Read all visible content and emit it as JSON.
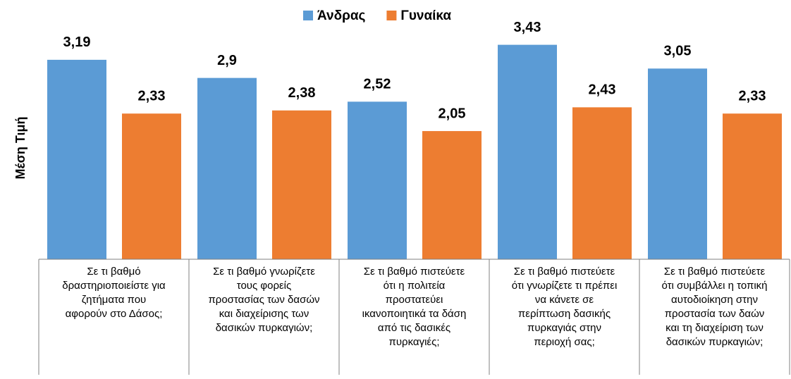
{
  "chart_data": {
    "type": "bar",
    "y_label": "Μέση Τιμή",
    "categories": [
      "Σε τι βαθμό\nδραστηριοποιείστε για\nζητήματα που\nαφορούν στο Δάσος;",
      "Σε τι βαθμό  γνωρίζετε\nτους φορείς\nπροστασίας των δασών\nκαι διαχείρισης των\nδασικών πυρκαγιών;",
      "Σε τι βαθμό  πιστεύετε\nότι η πολιτεία\nπροστατεύει\nικανοποιητικά τα δάση\nαπό τις δασικές\nπυρκαγιές;",
      "Σε τι βαθμό  πιστεύετε\nότι γνωρίζετε  τι πρέπει\nνα κάνετε σε\nπερίπτωση δασικής\nπυρκαγιάς στην\nπεριοχή σας;",
      "Σε τι βαθμό  πιστεύετε\nότι συμβάλλει  η τοπική\nαυτοδιοίκηση  στην\nπροστασία των δαών\nκαι τη διαχείριση των\nδασικών πυρκαγιών;"
    ],
    "series": [
      {
        "name": "Άνδρας",
        "color": "#5b9bd5",
        "values": [
          3.19,
          2.9,
          2.52,
          3.43,
          3.05
        ],
        "value_labels": [
          "3,19",
          "2,9",
          "2,52",
          "3,43",
          "3,05"
        ]
      },
      {
        "name": "Γυναίκα",
        "color": "#ed7d31",
        "values": [
          2.33,
          2.38,
          2.05,
          2.43,
          2.33
        ],
        "value_labels": [
          "2,33",
          "2,38",
          "2,05",
          "2,43",
          "2,33"
        ]
      }
    ],
    "ylim": [
      0,
      4
    ],
    "legend": "top"
  }
}
